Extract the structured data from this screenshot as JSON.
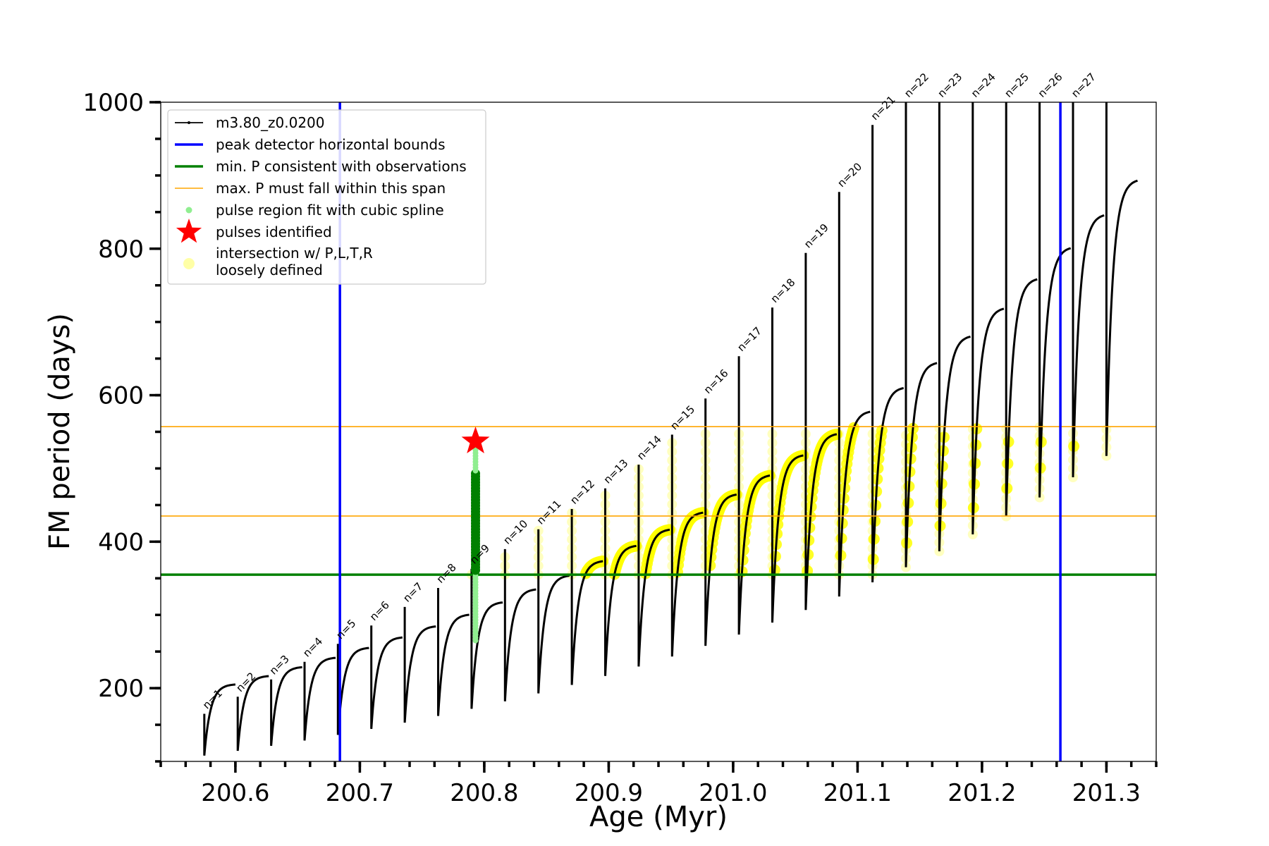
{
  "chart_data": {
    "type": "line",
    "xlabel": "Age (Myr)",
    "ylabel": "FM period (days)",
    "xlim": [
      200.54,
      201.34
    ],
    "ylim": [
      100,
      1000
    ],
    "xticks": [
      200.6,
      200.7,
      200.8,
      200.9,
      201.0,
      201.1,
      201.2,
      201.3
    ],
    "xtick_labels": [
      "200.6",
      "200.7",
      "200.8",
      "200.9",
      "201.0",
      "201.1",
      "201.2",
      "201.3"
    ],
    "yticks": [
      200,
      400,
      600,
      800,
      1000
    ],
    "ytick_labels": [
      "200",
      "400",
      "600",
      "800",
      "1000"
    ],
    "grid": false,
    "legend_position": "top-left",
    "track": {
      "name": "m3.80_z0.0200",
      "color": "#000000",
      "pulses": 28,
      "age_start": 200.575,
      "age_end": 201.3,
      "period_min_start": 108,
      "period_peak_start": 205
    },
    "vertical_lines": {
      "name": "peak detector horizontal bounds",
      "color": "#0000ff",
      "x": [
        200.684,
        201.263
      ]
    },
    "hlines_min": {
      "name": "min. P consistent with observations",
      "color": "#008000",
      "y": [
        355
      ]
    },
    "hlines_max": {
      "name": "max. P must fall within this span",
      "color": "#ffa500",
      "y": [
        435,
        557
      ]
    },
    "spline_points": {
      "name": "pulse region fit with cubic spline",
      "color": "#90ee90",
      "x": 200.793,
      "y_range": [
        265,
        535
      ]
    },
    "pulses_identified": {
      "name": "pulses identified",
      "color": "#ff0000",
      "x": [
        200.793
      ],
      "y": [
        537
      ]
    },
    "loose_intersection": {
      "name": "intersection w/ P,L,T,R",
      "name2": "loosely defined",
      "color": "#ffff00",
      "y_range": [
        355,
        557
      ]
    },
    "pulse_labels": [
      "n=1",
      "n=2",
      "n=3",
      "n=4",
      "n=5",
      "n=6",
      "n=7",
      "n=8",
      "n=9",
      "n=10",
      "n=11",
      "n=12",
      "n=13",
      "n=14",
      "n=15",
      "n=16",
      "n=17",
      "n=18",
      "n=19",
      "n=20",
      "n=21",
      "n=22",
      "n=23",
      "n=24",
      "n=25",
      "n=26",
      "n=27"
    ]
  }
}
